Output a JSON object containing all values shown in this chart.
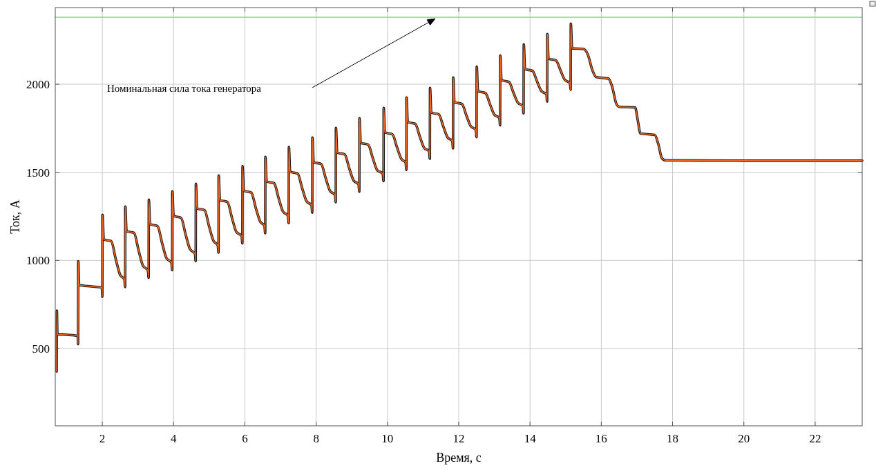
{
  "chart_data": {
    "type": "line",
    "xlabel": "Время, с",
    "ylabel": "Ток, А",
    "xlim": [
      0.68,
      23.32
    ],
    "ylim": [
      61,
      2435
    ],
    "xticks": [
      2,
      4,
      6,
      8,
      10,
      12,
      14,
      16,
      18,
      20,
      22
    ],
    "yticks": [
      500,
      1000,
      1500,
      2000
    ],
    "grid": true,
    "line_style": "solid",
    "ref_lines": [
      {
        "axis": "y",
        "value": 2380,
        "color": "#8fd16a"
      }
    ],
    "annotations": [
      "Номинальная сила тока генератора"
    ],
    "series": [
      {
        "color": "#f26522",
        "x": [
          0.72,
          0.725,
          0.74,
          1.0,
          1.31,
          1.32,
          1.325,
          1.35,
          1.7,
          1.99,
          2.0,
          2.005,
          2.04,
          2.25,
          2.38,
          2.5,
          2.62,
          2.64,
          2.645,
          2.68,
          2.89,
          3.02,
          3.14,
          3.28,
          3.3,
          3.305,
          3.34,
          3.55,
          3.68,
          3.8,
          3.94,
          3.96,
          3.965,
          4.0,
          4.21,
          4.34,
          4.46,
          4.6,
          4.62,
          4.625,
          4.66,
          4.87,
          5.0,
          5.12,
          5.24,
          5.26,
          5.265,
          5.3,
          5.51,
          5.64,
          5.76,
          5.91,
          5.93,
          5.935,
          5.97,
          6.18,
          6.31,
          6.43,
          6.55,
          6.57,
          6.575,
          6.61,
          6.82,
          6.95,
          7.07,
          7.21,
          7.23,
          7.235,
          7.27,
          7.48,
          7.61,
          7.73,
          7.87,
          7.89,
          7.895,
          7.93,
          8.14,
          8.27,
          8.39,
          8.53,
          8.55,
          8.555,
          8.59,
          8.8,
          8.93,
          9.05,
          9.19,
          9.21,
          9.215,
          9.25,
          9.46,
          9.59,
          9.71,
          9.87,
          9.89,
          9.895,
          9.93,
          10.14,
          10.27,
          10.39,
          10.51,
          10.53,
          10.535,
          10.57,
          10.78,
          10.91,
          11.03,
          11.17,
          11.19,
          11.195,
          11.23,
          11.44,
          11.57,
          11.69,
          11.82,
          11.84,
          11.845,
          11.88,
          12.09,
          12.22,
          12.34,
          12.48,
          12.5,
          12.505,
          12.54,
          12.75,
          12.88,
          13.0,
          13.14,
          13.16,
          13.165,
          13.2,
          13.41,
          13.54,
          13.66,
          13.8,
          13.82,
          13.825,
          13.86,
          14.07,
          14.2,
          14.32,
          14.46,
          14.48,
          14.485,
          14.52,
          14.73,
          14.86,
          14.98,
          15.12,
          15.14,
          15.145,
          15.18,
          15.5,
          15.62,
          15.75,
          15.86,
          16.2,
          16.3,
          16.42,
          16.5,
          16.95,
          17.02,
          17.1,
          17.5,
          17.6,
          17.7,
          17.8,
          20,
          23.32
        ],
        "values": [
          370,
          715,
          580,
          578,
          572,
          525,
          995,
          860,
          852,
          845,
          794,
          1259,
          1119,
          1109,
          1005,
          918,
          891,
          849,
          1306,
          1166,
          1156,
          1055,
          970,
          943,
          901,
          1345,
          1205,
          1195,
          1096,
          1013,
          987,
          945,
          1392,
          1252,
          1242,
          1145,
          1064,
          1038,
          996,
          1435,
          1295,
          1285,
          1190,
          1111,
          1086,
          1044,
          1482,
          1342,
          1332,
          1240,
          1162,
          1138,
          1096,
          1535,
          1395,
          1385,
          1295,
          1220,
          1196,
          1154,
          1588,
          1448,
          1438,
          1351,
          1277,
          1254,
          1212,
          1643,
          1503,
          1493,
          1408,
          1336,
          1313,
          1271,
          1697,
          1557,
          1547,
          1465,
          1394,
          1372,
          1330,
          1752,
          1612,
          1602,
          1522,
          1454,
          1432,
          1390,
          1807,
          1667,
          1657,
          1580,
          1513,
          1492,
          1450,
          1866,
          1726,
          1716,
          1641,
          1576,
          1556,
          1514,
          1925,
          1785,
          1775,
          1702,
          1639,
          1619,
          1577,
          1979,
          1839,
          1829,
          1759,
          1697,
          1678,
          1636,
          2038,
          1898,
          1888,
          1820,
          1761,
          1742,
          1700,
          2100,
          1960,
          1950,
          1885,
          1827,
          1809,
          1767,
          2163,
          2023,
          2013,
          1950,
          1895,
          1877,
          1835,
          2226,
          2086,
          2076,
          2015,
          1961,
          1944,
          1902,
          2285,
          2145,
          2135,
          2077,
          2024,
          2008,
          1968,
          2344,
          2204,
          2200,
          2170,
          2080,
          2040,
          2032,
          1990,
          1890,
          1872,
          1868,
          1800,
          1720,
          1712,
          1660,
          1580,
          1568,
          1566,
          1566
        ]
      }
    ]
  }
}
